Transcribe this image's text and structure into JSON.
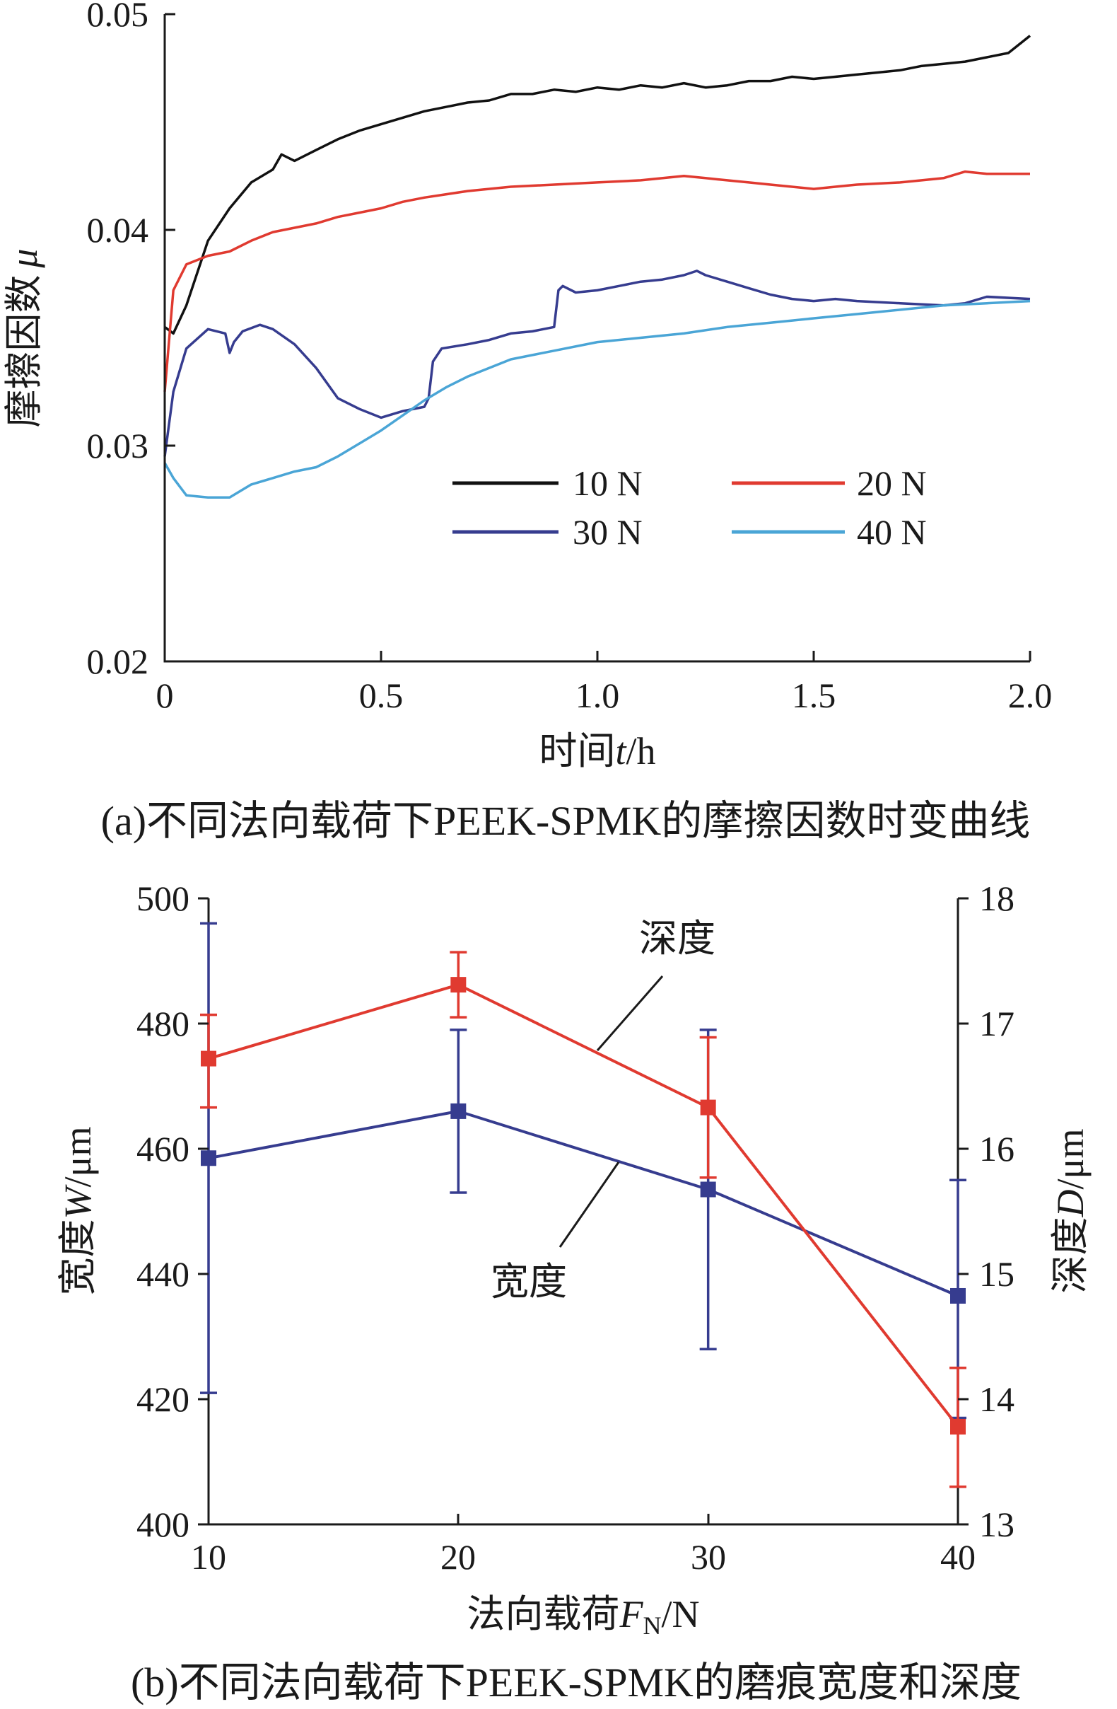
{
  "chart_data": [
    {
      "type": "line",
      "panel": "a",
      "caption": "(a)不同法向载荷下PEEK-SPMK的摩擦因数时变曲线",
      "xlabel": {
        "prefix": "时间",
        "var": "t",
        "unit": "/h"
      },
      "ylabel": {
        "prefix": "摩擦因数",
        "var": "μ"
      },
      "xlim": [
        0,
        2.0
      ],
      "ylim": [
        0.02,
        0.05
      ],
      "xticks": [
        0,
        0.5,
        1.0,
        1.5,
        2.0
      ],
      "xtick_labels": [
        "0",
        "0.5",
        "1.0",
        "1.5",
        "2.0"
      ],
      "yticks": [
        0.02,
        0.03,
        0.04,
        0.05
      ],
      "ytick_labels": [
        "0.02",
        "0.03",
        "0.04",
        "0.05"
      ],
      "grid": false,
      "legend_position": "lower-right",
      "series": [
        {
          "name": "10 N",
          "color": "#111111",
          "x": [
            0,
            0.02,
            0.05,
            0.1,
            0.15,
            0.2,
            0.25,
            0.27,
            0.3,
            0.35,
            0.4,
            0.45,
            0.5,
            0.55,
            0.6,
            0.65,
            0.7,
            0.75,
            0.8,
            0.85,
            0.9,
            0.95,
            1.0,
            1.05,
            1.1,
            1.15,
            1.2,
            1.25,
            1.3,
            1.35,
            1.4,
            1.45,
            1.5,
            1.55,
            1.6,
            1.65,
            1.7,
            1.75,
            1.8,
            1.85,
            1.9,
            1.95,
            2.0
          ],
          "y": [
            0.0355,
            0.0352,
            0.0365,
            0.0395,
            0.041,
            0.0422,
            0.0428,
            0.0435,
            0.0432,
            0.0437,
            0.0442,
            0.0446,
            0.0449,
            0.0452,
            0.0455,
            0.0457,
            0.0459,
            0.046,
            0.0463,
            0.0463,
            0.0465,
            0.0464,
            0.0466,
            0.0465,
            0.0467,
            0.0466,
            0.0468,
            0.0466,
            0.0467,
            0.0469,
            0.0469,
            0.0471,
            0.047,
            0.0471,
            0.0472,
            0.0473,
            0.0474,
            0.0476,
            0.0477,
            0.0478,
            0.048,
            0.0482,
            0.049
          ]
        },
        {
          "name": "20 N",
          "color": "#e03a30",
          "x": [
            0,
            0.02,
            0.05,
            0.1,
            0.15,
            0.2,
            0.25,
            0.3,
            0.35,
            0.4,
            0.45,
            0.5,
            0.55,
            0.6,
            0.7,
            0.8,
            0.9,
            1.0,
            1.1,
            1.2,
            1.25,
            1.3,
            1.35,
            1.4,
            1.5,
            1.55,
            1.6,
            1.7,
            1.8,
            1.85,
            1.9,
            2.0
          ],
          "y": [
            0.0325,
            0.0372,
            0.0384,
            0.0388,
            0.039,
            0.0395,
            0.0399,
            0.0401,
            0.0403,
            0.0406,
            0.0408,
            0.041,
            0.0413,
            0.0415,
            0.0418,
            0.042,
            0.0421,
            0.0422,
            0.0423,
            0.0425,
            0.0424,
            0.0423,
            0.0422,
            0.0421,
            0.0419,
            0.042,
            0.0421,
            0.0422,
            0.0424,
            0.0427,
            0.0426,
            0.0426
          ]
        },
        {
          "name": "30 N",
          "color": "#363c8f",
          "x": [
            0,
            0.02,
            0.05,
            0.1,
            0.14,
            0.15,
            0.16,
            0.18,
            0.22,
            0.25,
            0.3,
            0.35,
            0.4,
            0.45,
            0.5,
            0.55,
            0.6,
            0.61,
            0.62,
            0.64,
            0.7,
            0.75,
            0.8,
            0.85,
            0.9,
            0.91,
            0.92,
            0.95,
            1.0,
            1.05,
            1.1,
            1.15,
            1.2,
            1.23,
            1.25,
            1.3,
            1.35,
            1.4,
            1.45,
            1.5,
            1.55,
            1.6,
            1.7,
            1.8,
            1.85,
            1.9,
            2.0
          ],
          "y": [
            0.0295,
            0.0325,
            0.0345,
            0.0354,
            0.0352,
            0.0343,
            0.0348,
            0.0353,
            0.0356,
            0.0354,
            0.0347,
            0.0336,
            0.0322,
            0.0317,
            0.0313,
            0.0316,
            0.0318,
            0.0322,
            0.0339,
            0.0345,
            0.0347,
            0.0349,
            0.0352,
            0.0353,
            0.0355,
            0.0372,
            0.0374,
            0.0371,
            0.0372,
            0.0374,
            0.0376,
            0.0377,
            0.0379,
            0.0381,
            0.0379,
            0.0376,
            0.0373,
            0.037,
            0.0368,
            0.0367,
            0.0368,
            0.0367,
            0.0366,
            0.0365,
            0.0366,
            0.0369,
            0.0368
          ]
        },
        {
          "name": "40 N",
          "color": "#4aa5d6",
          "x": [
            0,
            0.02,
            0.05,
            0.1,
            0.15,
            0.2,
            0.25,
            0.3,
            0.35,
            0.4,
            0.45,
            0.5,
            0.55,
            0.6,
            0.65,
            0.7,
            0.8,
            0.9,
            1.0,
            1.1,
            1.2,
            1.3,
            1.4,
            1.5,
            1.6,
            1.7,
            1.8,
            1.9,
            2.0
          ],
          "y": [
            0.0292,
            0.0285,
            0.0277,
            0.0276,
            0.0276,
            0.0282,
            0.0285,
            0.0288,
            0.029,
            0.0295,
            0.0301,
            0.0307,
            0.0314,
            0.0321,
            0.0327,
            0.0332,
            0.034,
            0.0344,
            0.0348,
            0.035,
            0.0352,
            0.0355,
            0.0357,
            0.0359,
            0.0361,
            0.0363,
            0.0365,
            0.0366,
            0.0367
          ]
        }
      ]
    },
    {
      "type": "line",
      "panel": "b",
      "caption": "(b)不同法向载荷下PEEK-SPMK的磨痕宽度和深度",
      "xlabel": {
        "prefix": "法向载荷",
        "var": "F",
        "sub": "N",
        "unit": "/N"
      },
      "ylabel_left": {
        "prefix": "宽度",
        "var": "W",
        "unit": "/μm"
      },
      "ylabel_right": {
        "prefix": "深度",
        "var": "D",
        "unit": "/μm"
      },
      "x": [
        10,
        20,
        30,
        40
      ],
      "xlim": [
        10,
        40
      ],
      "xticks": [
        10,
        20,
        30,
        40
      ],
      "xtick_labels": [
        "10",
        "20",
        "30",
        "40"
      ],
      "ylim_left": [
        400,
        500
      ],
      "yticks_left": [
        400,
        420,
        440,
        460,
        480,
        500
      ],
      "ytick_labels_left": [
        "400",
        "420",
        "440",
        "460",
        "480",
        "500"
      ],
      "ylim_right": [
        13,
        18
      ],
      "yticks_right": [
        13,
        14,
        15,
        16,
        17,
        18
      ],
      "ytick_labels_right": [
        "13",
        "14",
        "15",
        "16",
        "17",
        "18"
      ],
      "grid": false,
      "series": [
        {
          "name": "宽度",
          "axis": "left",
          "color": "#363c8f",
          "values": [
            458.5,
            466,
            453.5,
            436.5
          ],
          "err_low": [
            421,
            453,
            428,
            417
          ],
          "err_high": [
            496,
            479,
            479,
            455
          ]
        },
        {
          "name": "深度",
          "axis": "right",
          "color": "#e03a30",
          "values": [
            16.72,
            17.31,
            16.33,
            13.78
          ],
          "err_low": [
            16.33,
            17.05,
            15.77,
            13.3
          ],
          "err_high": [
            17.07,
            17.57,
            16.89,
            14.25
          ]
        }
      ]
    }
  ]
}
